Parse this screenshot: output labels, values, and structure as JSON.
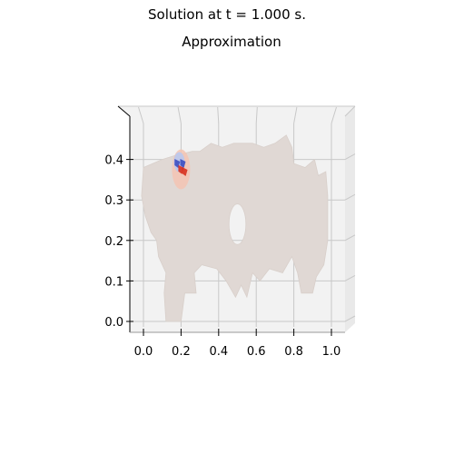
{
  "figure": {
    "suptitle": "Solution at t = 1.000 s.",
    "title": "Approximation"
  },
  "chart_data": {
    "type": "surface",
    "title": "Approximation",
    "view": "3D surface seen from above (x-y plane)",
    "xlim": [
      -0.07,
      1.07
    ],
    "ylim": [
      -0.03,
      0.5
    ],
    "x_ticks": [
      "0.0",
      "0.2",
      "0.4",
      "0.6",
      "0.8",
      "1.0"
    ],
    "x_tick_values": [
      0.0,
      0.2,
      0.4,
      0.6,
      0.8,
      1.0
    ],
    "y_ticks": [
      "0.0",
      "0.1",
      "0.2",
      "0.3",
      "0.4"
    ],
    "y_tick_values": [
      0.0,
      0.1,
      0.2,
      0.3,
      0.4
    ],
    "grid": true,
    "colormap": "coolwarm",
    "colors": {
      "base_surface": "#e0d8d4",
      "pane": "#f2f2f2",
      "grid": "#c8c8c8",
      "positive": "#d7301f",
      "negative": "#3b4cc0"
    },
    "domain_outline": [
      [
        0.0,
        0.38
      ],
      [
        0.1,
        0.4
      ],
      [
        0.17,
        0.41
      ],
      [
        0.26,
        0.42
      ],
      [
        0.3,
        0.42
      ],
      [
        0.36,
        0.44
      ],
      [
        0.42,
        0.43
      ],
      [
        0.48,
        0.44
      ],
      [
        0.53,
        0.44
      ],
      [
        0.58,
        0.44
      ],
      [
        0.64,
        0.43
      ],
      [
        0.7,
        0.44
      ],
      [
        0.76,
        0.46
      ],
      [
        0.79,
        0.43
      ],
      [
        0.8,
        0.39
      ],
      [
        0.86,
        0.38
      ],
      [
        0.91,
        0.4
      ],
      [
        0.93,
        0.36
      ],
      [
        0.97,
        0.37
      ],
      [
        0.98,
        0.31
      ],
      [
        0.98,
        0.2
      ],
      [
        0.96,
        0.14
      ],
      [
        0.92,
        0.11
      ],
      [
        0.9,
        0.07
      ],
      [
        0.84,
        0.07
      ],
      [
        0.82,
        0.12
      ],
      [
        0.79,
        0.16
      ],
      [
        0.74,
        0.12
      ],
      [
        0.67,
        0.13
      ],
      [
        0.62,
        0.1
      ],
      [
        0.58,
        0.12
      ],
      [
        0.55,
        0.06
      ],
      [
        0.52,
        0.09
      ],
      [
        0.49,
        0.06
      ],
      [
        0.44,
        0.1
      ],
      [
        0.39,
        0.13
      ],
      [
        0.31,
        0.14
      ],
      [
        0.27,
        0.12
      ],
      [
        0.28,
        0.07
      ],
      [
        0.22,
        0.07
      ],
      [
        0.2,
        0.0
      ],
      [
        0.12,
        0.0
      ],
      [
        0.11,
        0.07
      ],
      [
        0.12,
        0.12
      ],
      [
        0.08,
        0.16
      ],
      [
        0.07,
        0.2
      ],
      [
        0.04,
        0.22
      ],
      [
        0.01,
        0.26
      ],
      [
        -0.01,
        0.31
      ]
    ],
    "hole": {
      "cx": 0.5,
      "cy": 0.24,
      "rx": 0.045,
      "ry": 0.05
    },
    "hotspot": {
      "x": 0.2,
      "y": 0.38,
      "patches": [
        {
          "x": 0.18,
          "y": 0.39,
          "sign": "negative"
        },
        {
          "x": 0.21,
          "y": 0.39,
          "sign": "negative"
        },
        {
          "x": 0.2,
          "y": 0.375,
          "sign": "positive"
        },
        {
          "x": 0.22,
          "y": 0.37,
          "sign": "positive"
        }
      ]
    }
  }
}
